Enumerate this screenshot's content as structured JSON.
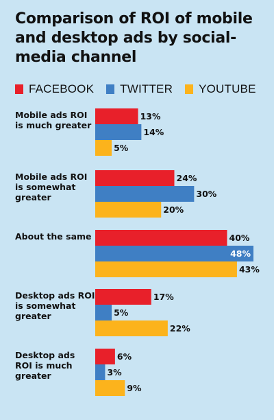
{
  "title": "Comparison of ROI of mobile and desktop ads by social-media channel",
  "chart_data": {
    "type": "bar",
    "orientation": "horizontal",
    "title": "Comparison of ROI of mobile and desktop ads by social-media channel",
    "categories": [
      [
        "Mobile ads ROI",
        "is much greater"
      ],
      [
        "Mobile ads ROI",
        "is somewhat",
        "greater"
      ],
      [
        "About the same"
      ],
      [
        "Desktop ads ROI",
        "is somewhat",
        "greater"
      ],
      [
        "Desktop ads",
        "ROI is much",
        "greater"
      ]
    ],
    "series": [
      {
        "name": "FACEBOOK",
        "color": "#e8202a",
        "values": [
          13,
          24,
          40,
          17,
          6
        ]
      },
      {
        "name": "TWITTER",
        "color": "#3f7fc4",
        "values": [
          14,
          30,
          48,
          5,
          3
        ]
      },
      {
        "name": "YOUTUBE",
        "color": "#fcb31c",
        "values": [
          5,
          20,
          43,
          22,
          9
        ]
      }
    ],
    "value_suffix": "%",
    "xlim": [
      0,
      48
    ],
    "grid": false,
    "legend_position": "top",
    "background_color": "#c9e4f3"
  }
}
